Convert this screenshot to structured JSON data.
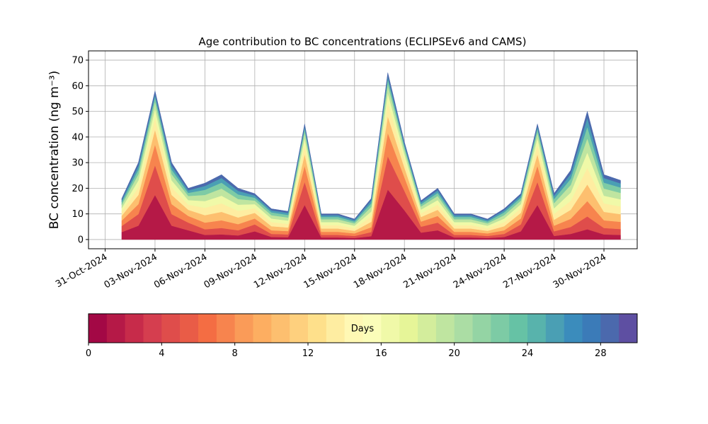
{
  "chart_data": {
    "type": "stacked_area",
    "title": "Age contribution to BC concentrations (ECLIPSEv6 and CAMS)",
    "ylabel": "BC concentration (ng m⁻³)",
    "x": [
      "01-Nov-2024",
      "02-Nov-2024",
      "03-Nov-2024",
      "04-Nov-2024",
      "05-Nov-2024",
      "06-Nov-2024",
      "07-Nov-2024",
      "08-Nov-2024",
      "09-Nov-2024",
      "10-Nov-2024",
      "11-Nov-2024",
      "12-Nov-2024",
      "13-Nov-2024",
      "14-Nov-2024",
      "15-Nov-2024",
      "16-Nov-2024",
      "17-Nov-2024",
      "18-Nov-2024",
      "19-Nov-2024",
      "20-Nov-2024",
      "21-Nov-2024",
      "22-Nov-2024",
      "23-Nov-2024",
      "24-Nov-2024",
      "25-Nov-2024",
      "26-Nov-2024",
      "27-Nov-2024",
      "28-Nov-2024",
      "29-Nov-2024",
      "30-Nov-2024",
      "01-Dec-2024"
    ],
    "series": [
      {
        "color": "#b51947",
        "values": [
          2.9,
          5.4,
          17.4,
          5.4,
          3.6,
          1.8,
          2.0,
          1.6,
          3.2,
          1.0,
          0.9,
          13.5,
          0.8,
          0.8,
          0.6,
          1.3,
          19.5,
          11.4,
          2.7,
          3.6,
          0.8,
          0.8,
          0.6,
          1.0,
          3.2,
          13.5,
          1.4,
          2.2,
          4.0,
          2.0,
          1.8
        ]
      },
      {
        "color": "#df4d4b",
        "values": [
          2.4,
          4.5,
          11.6,
          4.5,
          3.0,
          2.2,
          2.5,
          2.0,
          2.7,
          1.2,
          1.1,
          9.0,
          1.0,
          1.0,
          0.8,
          1.6,
          13.0,
          7.6,
          2.3,
          3.0,
          1.0,
          1.0,
          0.8,
          1.2,
          2.7,
          9.0,
          1.8,
          2.7,
          5.0,
          2.5,
          2.3
        ]
      },
      {
        "color": "#f7844e",
        "values": [
          2.1,
          3.9,
          8.1,
          3.9,
          2.6,
          2.6,
          3.0,
          2.4,
          2.3,
          1.4,
          1.3,
          6.3,
          1.2,
          1.2,
          1.0,
          1.9,
          9.1,
          5.3,
          2.0,
          2.6,
          1.2,
          1.2,
          1.0,
          1.4,
          2.3,
          6.3,
          2.2,
          3.2,
          6.0,
          3.0,
          2.8
        ]
      },
      {
        "color": "#fdbf6f",
        "values": [
          1.9,
          3.6,
          5.8,
          3.6,
          2.4,
          2.9,
          3.3,
          2.6,
          2.2,
          1.6,
          1.4,
          4.5,
          1.3,
          1.3,
          1.0,
          2.1,
          6.5,
          3.8,
          1.8,
          2.4,
          1.3,
          1.3,
          1.0,
          1.6,
          2.2,
          4.5,
          2.3,
          3.5,
          6.5,
          3.3,
          3.0
        ]
      },
      {
        "color": "#feeda1",
        "values": [
          1.6,
          3.0,
          4.6,
          3.0,
          2.0,
          2.9,
          3.3,
          2.6,
          1.8,
          1.6,
          1.4,
          3.6,
          1.3,
          1.3,
          1.0,
          2.1,
          5.2,
          3.0,
          1.5,
          2.0,
          1.3,
          1.3,
          1.0,
          1.6,
          1.8,
          3.6,
          2.3,
          3.5,
          6.5,
          3.3,
          3.0
        ]
      },
      {
        "color": "#f0f9a8",
        "values": [
          1.4,
          2.7,
          3.5,
          2.7,
          1.8,
          2.6,
          3.0,
          2.4,
          1.6,
          1.4,
          1.3,
          2.7,
          1.2,
          1.2,
          1.0,
          1.9,
          3.9,
          2.3,
          1.4,
          1.8,
          1.2,
          1.2,
          1.0,
          1.4,
          1.6,
          2.7,
          2.2,
          3.2,
          6.0,
          3.0,
          2.8
        ]
      },
      {
        "color": "#bfe5a0",
        "values": [
          1.3,
          2.4,
          2.9,
          2.4,
          1.6,
          2.4,
          2.8,
          2.2,
          1.4,
          1.3,
          1.2,
          2.3,
          1.1,
          1.1,
          0.9,
          1.8,
          3.3,
          1.9,
          1.2,
          1.6,
          1.1,
          1.1,
          0.9,
          1.3,
          1.4,
          2.3,
          2.0,
          3.0,
          5.5,
          2.8,
          2.5
        ]
      },
      {
        "color": "#7dcba5",
        "values": [
          1.0,
          1.8,
          1.7,
          1.8,
          1.2,
          2.0,
          2.3,
          1.8,
          1.1,
          1.1,
          1.0,
          1.4,
          0.9,
          0.9,
          0.7,
          1.4,
          2.0,
          1.1,
          0.9,
          1.2,
          0.9,
          0.9,
          0.7,
          1.1,
          1.1,
          1.4,
          1.6,
          2.4,
          4.5,
          2.3,
          2.1
        ]
      },
      {
        "color": "#4a9fb4",
        "values": [
          0.8,
          1.5,
          1.2,
          1.5,
          1.0,
          1.5,
          1.8,
          1.4,
          0.9,
          0.8,
          0.8,
          0.9,
          0.7,
          0.7,
          0.6,
          1.1,
          1.3,
          0.8,
          0.8,
          1.0,
          0.7,
          0.7,
          0.6,
          0.8,
          0.9,
          0.9,
          1.3,
          1.9,
          3.5,
          1.8,
          1.6
        ]
      },
      {
        "color": "#4b69ad",
        "values": [
          0.6,
          1.2,
          1.2,
          1.2,
          0.8,
          1.1,
          1.3,
          1.0,
          0.7,
          0.6,
          0.6,
          0.9,
          0.5,
          0.5,
          0.4,
          0.8,
          1.3,
          0.8,
          0.6,
          0.8,
          0.5,
          0.5,
          0.4,
          0.6,
          0.7,
          0.9,
          0.9,
          1.4,
          2.5,
          1.3,
          1.2
        ]
      }
    ],
    "xlim": [
      "30-Oct-2024",
      "02-Dec-2024"
    ],
    "xticks": [
      "31-Oct-2024",
      "03-Nov-2024",
      "06-Nov-2024",
      "09-Nov-2024",
      "12-Nov-2024",
      "15-Nov-2024",
      "18-Nov-2024",
      "21-Nov-2024",
      "24-Nov-2024",
      "27-Nov-2024",
      "30-Nov-2024"
    ],
    "ylim": [
      -3.6,
      73.6
    ],
    "yticks": [
      0,
      10,
      20,
      30,
      40,
      50,
      60,
      70
    ],
    "grid": true,
    "colorbar": {
      "label": "Days",
      "lim": [
        0,
        30
      ],
      "ticks": [
        0,
        4,
        8,
        12,
        16,
        20,
        24,
        28
      ],
      "colors": [
        "#a30845",
        "#b51947",
        "#c72b4a",
        "#d53e4f",
        "#df4d4b",
        "#e95c47",
        "#f46d43",
        "#f7844e",
        "#fa9b58",
        "#fdae61",
        "#fdbf6f",
        "#fed07e",
        "#fee08b",
        "#feeda1",
        "#fff8b4",
        "#fbfdb9",
        "#f0f9a8",
        "#e6f598",
        "#d3ed9c",
        "#bfe5a0",
        "#abdda4",
        "#94d4a4",
        "#7dcba5",
        "#66c2a5",
        "#58b3ac",
        "#4a9fb4",
        "#3b8cbc",
        "#3b7bb8",
        "#4b69ad",
        "#5e4fa2"
      ]
    }
  }
}
